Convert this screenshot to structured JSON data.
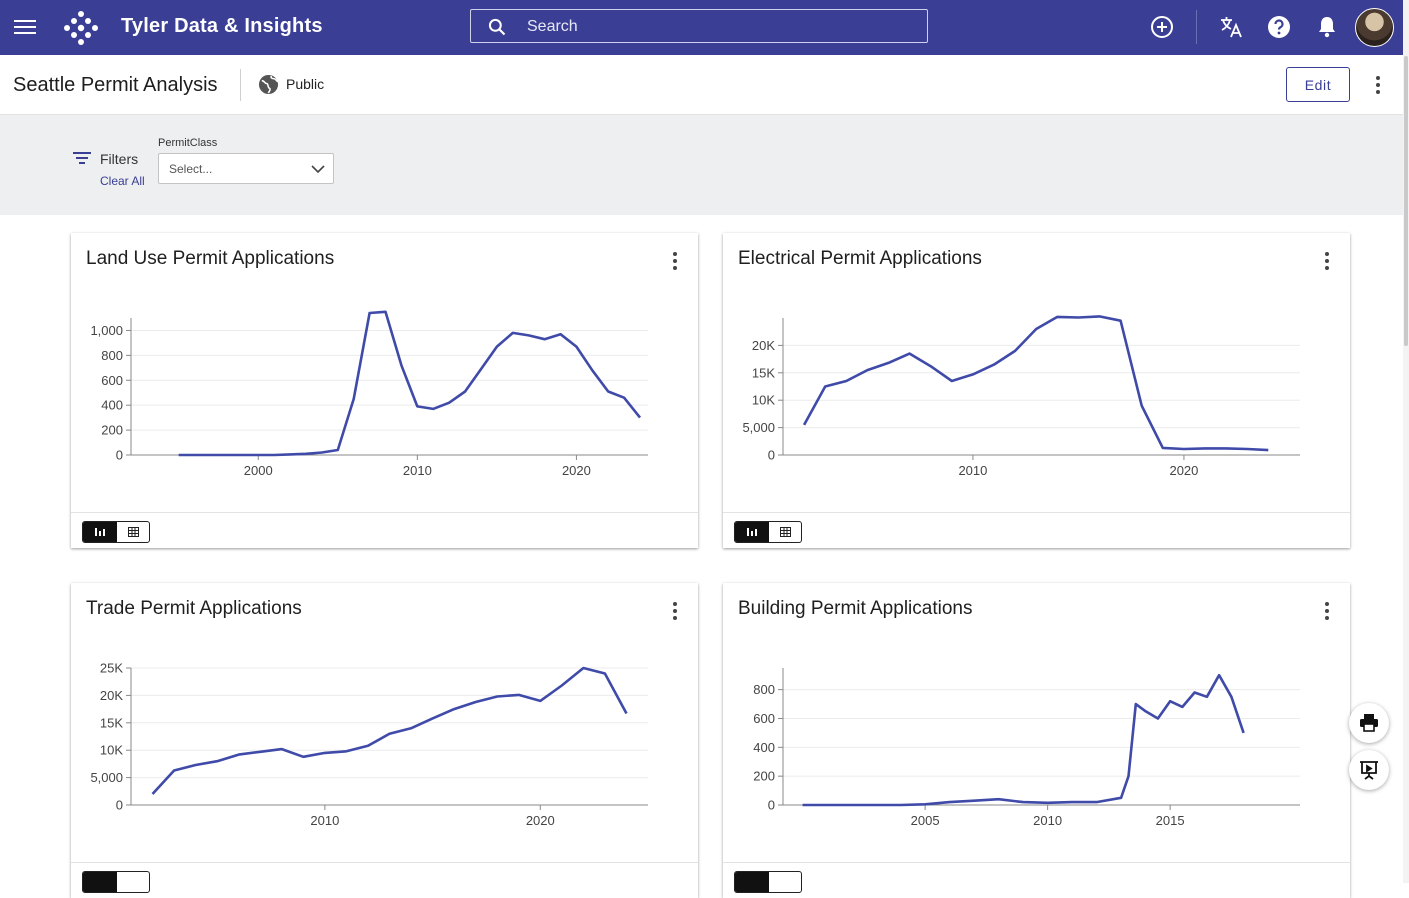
{
  "app": {
    "title": "Tyler Data & Insights",
    "search_placeholder": "Search"
  },
  "page": {
    "title": "Seattle Permit Analysis",
    "visibility": "Public",
    "edit_label": "Edit"
  },
  "filters": {
    "label": "Filters",
    "clear_all": "Clear All",
    "field_label": "PermitClass",
    "select_placeholder": "Select..."
  },
  "colors": {
    "appbar": "#3a3e94",
    "line": "#3f4aa9"
  },
  "icons": [
    "menu-icon",
    "logo-icon",
    "search-icon",
    "add-circle-icon",
    "translate-icon",
    "help-icon",
    "bell-icon",
    "globe-icon",
    "filter-icon",
    "chevron-down-icon",
    "kebab-icon",
    "bar-chart-icon",
    "table-icon",
    "print-icon",
    "presentation-icon"
  ],
  "cards": [
    {
      "title": "Land Use Permit Applications"
    },
    {
      "title": "Electrical Permit Applications"
    },
    {
      "title": "Trade Permit Applications"
    },
    {
      "title": "Building Permit Applications"
    }
  ],
  "chart_data": [
    {
      "type": "line",
      "title": "Land Use Permit Applications",
      "x": [
        1995,
        1997,
        1998,
        2000,
        2001,
        2002,
        2003,
        2004,
        2005,
        2006,
        2007,
        2008,
        2009,
        2010,
        2011,
        2012,
        2013,
        2014,
        2015,
        2016,
        2017,
        2018,
        2019,
        2020,
        2021,
        2022,
        2023,
        2024
      ],
      "values": [
        0,
        0,
        0,
        0,
        0,
        5,
        10,
        20,
        40,
        450,
        1140,
        1150,
        720,
        390,
        370,
        420,
        510,
        690,
        870,
        980,
        960,
        930,
        970,
        870,
        680,
        510,
        460,
        300
      ],
      "xlim": [
        1992,
        2024.5
      ],
      "ylim": [
        0,
        1100
      ],
      "yticks": [
        0,
        200,
        400,
        600,
        800,
        1000
      ],
      "ytick_labels": [
        "0",
        "200",
        "400",
        "600",
        "800",
        "1,000"
      ],
      "xticks": [
        2000,
        2010,
        2020
      ],
      "xtick_labels": [
        "2000",
        "2010",
        "2020"
      ],
      "grid": true
    },
    {
      "type": "line",
      "title": "Electrical Permit Applications",
      "x": [
        2002,
        2003,
        2004,
        2005,
        2006,
        2007,
        2008,
        2009,
        2010,
        2011,
        2012,
        2013,
        2014,
        2015,
        2016,
        2017,
        2018,
        2019,
        2020,
        2021,
        2022,
        2023,
        2024
      ],
      "values": [
        5500,
        12500,
        13500,
        15500,
        16800,
        18500,
        16200,
        13500,
        14700,
        16500,
        19000,
        23000,
        25200,
        25100,
        25300,
        24500,
        9000,
        1300,
        1100,
        1200,
        1200,
        1100,
        900
      ],
      "xlim": [
        2001,
        2025.5
      ],
      "ylim": [
        0,
        25000
      ],
      "yticks": [
        0,
        5000,
        10000,
        15000,
        20000
      ],
      "ytick_labels": [
        "0",
        "5,000",
        "10K",
        "15K",
        "20K"
      ],
      "xticks": [
        2010,
        2020
      ],
      "xtick_labels": [
        "2010",
        "2020"
      ],
      "grid": true
    },
    {
      "type": "line",
      "title": "Trade Permit Applications",
      "x": [
        2002,
        2003,
        2004,
        2005,
        2006,
        2007,
        2008,
        2009,
        2010,
        2011,
        2012,
        2013,
        2014,
        2015,
        2016,
        2017,
        2018,
        2019,
        2020,
        2021,
        2022,
        2023,
        2024
      ],
      "values": [
        2000,
        6300,
        7300,
        8000,
        9200,
        9700,
        10200,
        8800,
        9500,
        9800,
        10800,
        13000,
        14000,
        15800,
        17500,
        18800,
        19800,
        20100,
        19000,
        21800,
        25000,
        24000,
        16700
      ],
      "xlim": [
        2001,
        2025
      ],
      "ylim": [
        0,
        25000
      ],
      "yticks": [
        0,
        5000,
        10000,
        15000,
        20000,
        25000
      ],
      "ytick_labels": [
        "0",
        "5,000",
        "10K",
        "15K",
        "20K",
        "25K"
      ],
      "xticks": [
        2010,
        2020
      ],
      "xtick_labels": [
        "2010",
        "2020"
      ],
      "grid": true
    },
    {
      "type": "line",
      "title": "Building Permit Applications",
      "x": [
        2000,
        2001,
        2002,
        2003,
        2004,
        2005,
        2006,
        2007,
        2008,
        2009,
        2010,
        2011,
        2012,
        2013,
        2013.3,
        2013.6,
        2014,
        2014.5,
        2015,
        2015.5,
        2016,
        2016.5,
        2017,
        2017.5,
        2018
      ],
      "values": [
        0,
        0,
        0,
        0,
        0,
        5,
        20,
        30,
        40,
        20,
        15,
        20,
        20,
        50,
        200,
        700,
        650,
        600,
        720,
        680,
        780,
        750,
        900,
        750,
        500
      ],
      "xlim": [
        1999.2,
        2020.3
      ],
      "ylim": [
        0,
        950
      ],
      "yticks": [
        0,
        200,
        400,
        600,
        800
      ],
      "ytick_labels": [
        "0",
        "200",
        "400",
        "600",
        "800"
      ],
      "xticks": [
        2005,
        2010,
        2015
      ],
      "xtick_labels": [
        "2005",
        "2010",
        "2015"
      ],
      "grid": true
    }
  ]
}
